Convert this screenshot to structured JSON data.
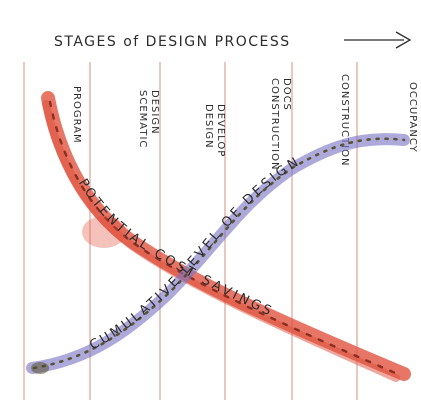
{
  "title": "STAGES of DESIGN PROCESS",
  "stages": [
    {
      "id": "program",
      "lines": [
        "PROGRAM"
      ]
    },
    {
      "id": "schematic",
      "lines": [
        "SCEMATIC",
        "DESIGN"
      ]
    },
    {
      "id": "design-development",
      "lines": [
        "DESIGN",
        "DEVELOP"
      ]
    },
    {
      "id": "construction-docs",
      "lines": [
        "CONSTRUCTION",
        "DOCS"
      ]
    },
    {
      "id": "construction",
      "lines": [
        "CONSTRUCTION"
      ]
    },
    {
      "id": "occupancy",
      "lines": [
        "OCCUPANCY"
      ]
    }
  ],
  "curves": {
    "cost": {
      "label": "POTENTIAL COST SAVINGS",
      "color": "#e0503c",
      "dot_color": "#7a2418",
      "trend": "decreasing"
    },
    "design": {
      "label": "CUMULATIVE LEVEL OF DESIGN",
      "color": "#7a74c4",
      "dot_color": "#4e4a20",
      "trend": "increasing"
    }
  },
  "colors": {
    "stage_line": "#d9a496",
    "ink": "#2c2c2c"
  }
}
